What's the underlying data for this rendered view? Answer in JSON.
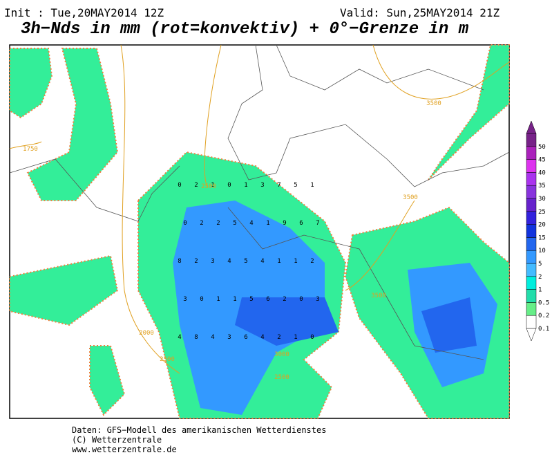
{
  "header": {
    "init": "Init : Tue,20MAY2014 12Z",
    "valid": "Valid: Sun,25MAY2014 21Z",
    "title": "3h−Nds in mm (rot=konvektiv) + 0°−Grenze in m"
  },
  "legend": {
    "levels": [
      "0.1",
      "0.2",
      "0.5",
      "1",
      "2",
      "5",
      "10",
      "15",
      "20",
      "25",
      "30",
      "35",
      "40",
      "45",
      "50"
    ],
    "colors": [
      "#ffffff",
      "#66ee88",
      "#22ddaa",
      "#00eedd",
      "#44bbff",
      "#3399ff",
      "#2266ee",
      "#1133dd",
      "#3322dd",
      "#6622cc",
      "#8833dd",
      "#aa33ee",
      "#dd33ee",
      "#aa22bb",
      "#772288"
    ]
  },
  "map": {
    "contour_labels": [
      "1750",
      "2500",
      "3500",
      "3500",
      "3500",
      "2000",
      "2500",
      "3000",
      "2500"
    ],
    "cell_values": [
      "0",
      "2",
      "1",
      "0",
      "1",
      "3",
      "7",
      "5",
      "1",
      "0",
      "2",
      "2",
      "5",
      "4",
      "1",
      "9",
      "6",
      "7",
      "8",
      "2",
      "3",
      "4",
      "5",
      "4",
      "1",
      "1",
      "2",
      "3",
      "0",
      "1",
      "1",
      "5",
      "6",
      "2",
      "0",
      "3",
      "4",
      "8",
      "4",
      "3",
      "6",
      "4",
      "2",
      "1",
      "0"
    ]
  },
  "footer": {
    "lines": [
      "Daten: GFS−Modell des amerikanischen Wetterdienstes",
      "(C) Wetterzentrale",
      "www.wetterzentrale.de"
    ]
  }
}
